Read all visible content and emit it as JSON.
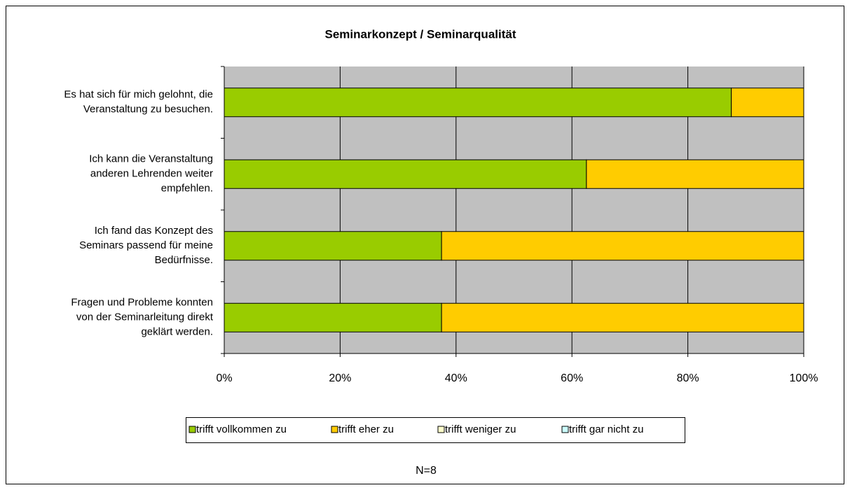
{
  "chart_data": {
    "type": "stacked_barh",
    "title": "Seminarkonzept / Seminarqualität",
    "categories": [
      [
        "Es hat sich für mich gelohnt, die",
        "Veranstaltung zu besuchen."
      ],
      [
        "Ich kann die Veranstaltung",
        "anderen Lehrenden weiter",
        "empfehlen."
      ],
      [
        "Ich fand das Konzept des",
        "Seminars passend für meine",
        "Bedürfnisse."
      ],
      [
        "Fragen und Probleme konnten",
        "von der Seminarleitung direkt",
        "geklärt werden."
      ]
    ],
    "series": [
      {
        "name": "trifft vollkommen zu",
        "color": "#99cc00",
        "values": [
          87.5,
          62.5,
          37.5,
          37.5
        ]
      },
      {
        "name": "trifft eher zu",
        "color": "#ffcc00",
        "values": [
          12.5,
          37.5,
          62.5,
          62.5
        ]
      },
      {
        "name": "trifft weniger zu",
        "color": "#ffffcc",
        "values": [
          0,
          0,
          0,
          0
        ]
      },
      {
        "name": "trifft gar nicht zu",
        "color": "#ccffff",
        "values": [
          0,
          0,
          0,
          0
        ]
      }
    ],
    "xlim": [
      0,
      100
    ],
    "xticks": [
      {
        "value": 0,
        "label": "0%"
      },
      {
        "value": 20,
        "label": "20%"
      },
      {
        "value": 40,
        "label": "40%"
      },
      {
        "value": 60,
        "label": "60%"
      },
      {
        "value": 80,
        "label": "80%"
      },
      {
        "value": 100,
        "label": "100%"
      }
    ],
    "grid": true,
    "legend": "bottom",
    "annotation": "N=8"
  }
}
